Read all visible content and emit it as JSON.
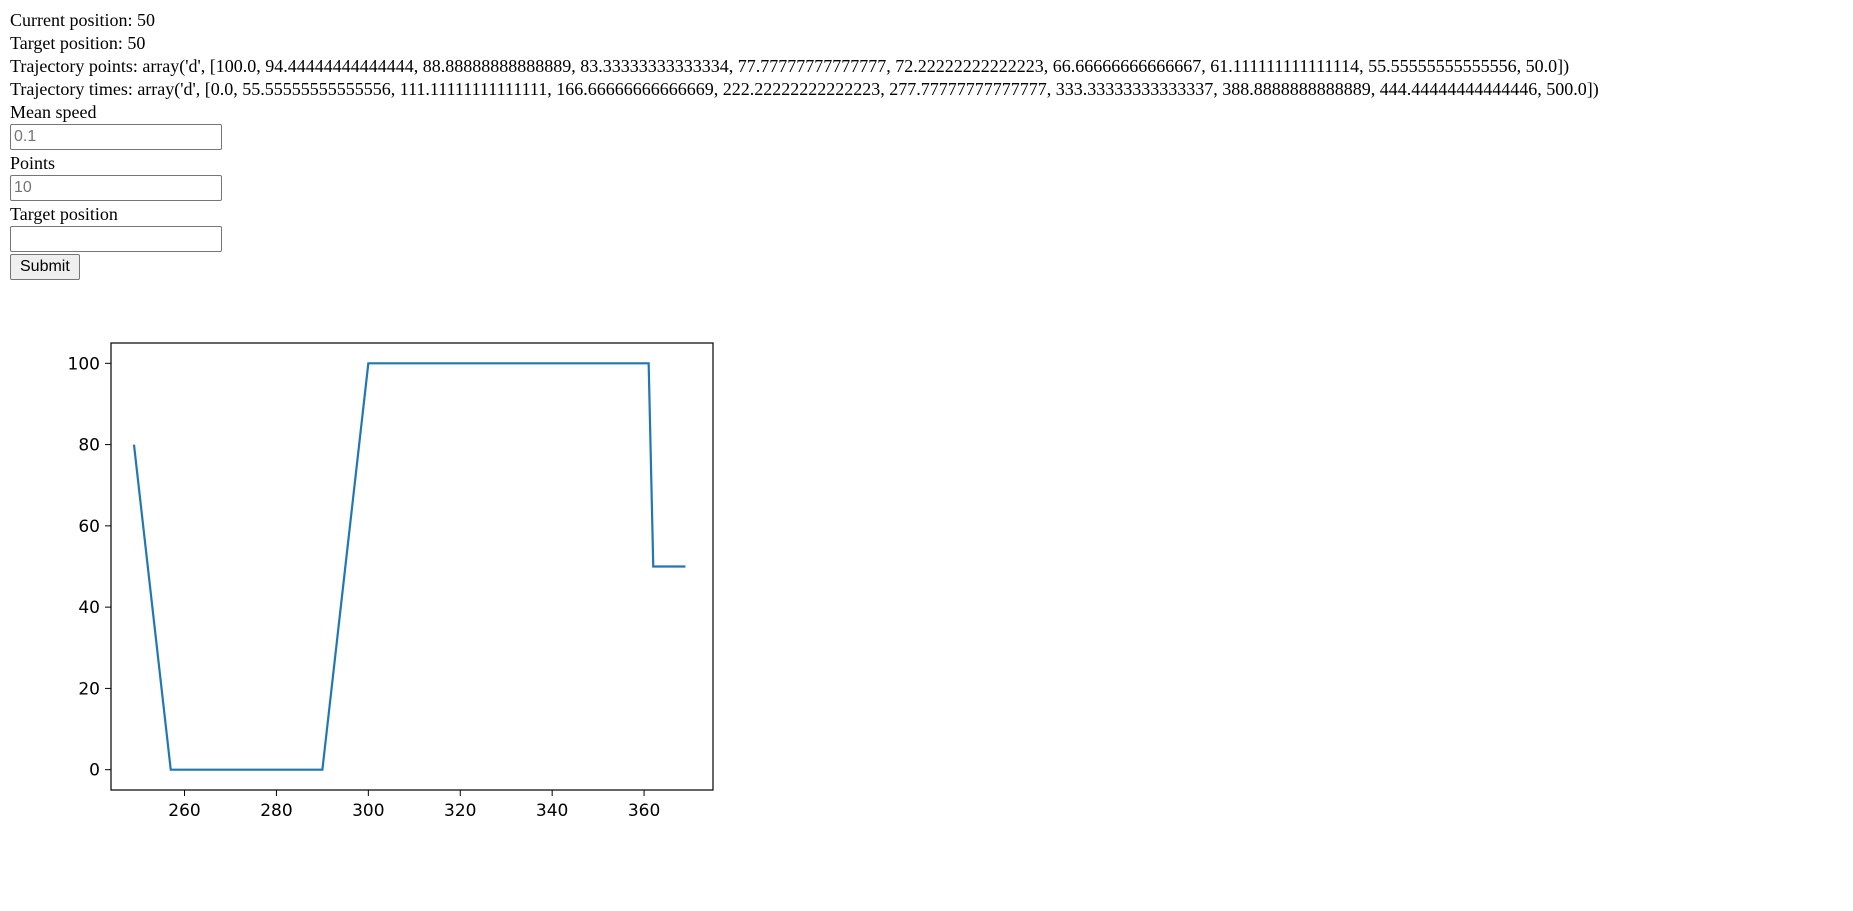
{
  "status": {
    "current_position": "Current position: 50",
    "target_position": "Target position: 50",
    "trajectory_points": "Trajectory points: array('d', [100.0, 94.44444444444444, 88.88888888888889, 83.33333333333334, 77.77777777777777, 72.22222222222223, 66.66666666666667, 61.111111111111114, 55.55555555555556, 50.0])",
    "trajectory_times": "Trajectory times: array('d', [0.0, 55.55555555555556, 111.11111111111111, 166.66666666666669, 222.22222222222223, 277.77777777777777, 333.33333333333337, 388.8888888888889, 444.44444444444446, 500.0])"
  },
  "form": {
    "mean_speed_label": "Mean speed",
    "mean_speed_placeholder": "0.1",
    "mean_speed_value": "",
    "points_label": "Points",
    "points_placeholder": "10",
    "points_value": "",
    "target_label": "Target position",
    "target_placeholder": "",
    "target_value": "",
    "submit_label": "Submit"
  },
  "chart_data": {
    "type": "line",
    "title": "",
    "xlabel": "",
    "ylabel": "",
    "xlim": [
      244,
      375
    ],
    "ylim": [
      -5,
      105
    ],
    "xticks": [
      260,
      280,
      300,
      320,
      340,
      360
    ],
    "yticks": [
      0,
      20,
      40,
      60,
      80,
      100
    ],
    "grid": false,
    "legend": "none",
    "line_color": "#1f77b4",
    "series": [
      {
        "x": [
          249,
          257,
          290,
          300,
          361,
          362,
          369
        ],
        "y": [
          80,
          0,
          0,
          100,
          100,
          50,
          50
        ]
      }
    ]
  }
}
